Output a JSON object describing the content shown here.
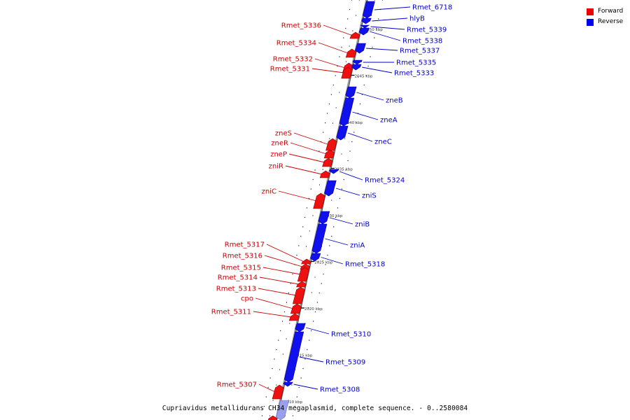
{
  "legend": {
    "forward": {
      "label": "Forward",
      "color": "#ee0000"
    },
    "reverse": {
      "label": "Reverse",
      "color": "#0000ee"
    }
  },
  "caption": "Cupriavidus metallidurans CH34 megaplasmid, complete sequence. - 0..2580084",
  "ticks": [
    {
      "label": "2050 kbp",
      "kbp": 2050
    },
    {
      "label": "2045 kbp",
      "kbp": 2045
    },
    {
      "label": "2040 kbp",
      "kbp": 2040
    },
    {
      "label": "2035 kbp",
      "kbp": 2035
    },
    {
      "label": "2030 kbp",
      "kbp": 2030
    },
    {
      "label": "2025 kbp",
      "kbp": 2025
    },
    {
      "label": "2020 kbp",
      "kbp": 2020
    },
    {
      "label": "2015 kbp",
      "kbp": 2015
    },
    {
      "label": "2010 kbp",
      "kbp": 2010
    }
  ],
  "forward_genes": [
    {
      "name": "Rmet_5336"
    },
    {
      "name": "Rmet_5334"
    },
    {
      "name": "Rmet_5332"
    },
    {
      "name": "Rmet_5331"
    },
    {
      "name": "zneS"
    },
    {
      "name": "zneR"
    },
    {
      "name": "zneP"
    },
    {
      "name": "zniR"
    },
    {
      "name": "zniC"
    },
    {
      "name": "Rmet_5317"
    },
    {
      "name": "Rmet_5316"
    },
    {
      "name": "Rmet_5315"
    },
    {
      "name": "Rmet_5314"
    },
    {
      "name": "Rmet_5313"
    },
    {
      "name": "cpo"
    },
    {
      "name": "Rmet_5311"
    },
    {
      "name": "Rmet_5307"
    }
  ],
  "reverse_genes": [
    {
      "name": "Rmet_6718"
    },
    {
      "name": "hlyB"
    },
    {
      "name": "Rmet_5339"
    },
    {
      "name": "Rmet_5338"
    },
    {
      "name": "Rmet_5337"
    },
    {
      "name": "Rmet_5335"
    },
    {
      "name": "Rmet_5333"
    },
    {
      "name": "zneB"
    },
    {
      "name": "zneA"
    },
    {
      "name": "zneC"
    },
    {
      "name": "Rmet_5324"
    },
    {
      "name": "zniS"
    },
    {
      "name": "zniB"
    },
    {
      "name": "zniA"
    },
    {
      "name": "Rmet_5318"
    },
    {
      "name": "Rmet_5310"
    },
    {
      "name": "Rmet_5309"
    },
    {
      "name": "Rmet_5308"
    }
  ]
}
